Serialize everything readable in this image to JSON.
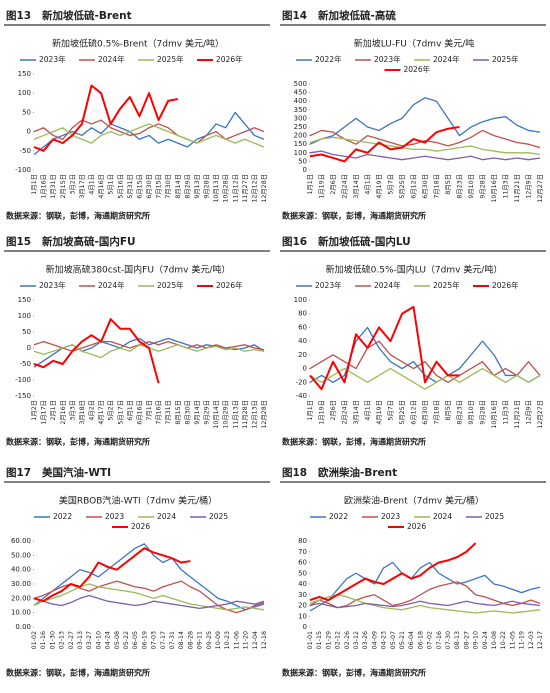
{
  "chart_data": [
    {
      "type": "line",
      "figure": "图13",
      "caption": "新加坡低硫-Brent",
      "title": "新加坡低硫0.5%-Brent（7dmv 美元/吨）",
      "source": "数据来源：钢联，彭博，海通期货研究所",
      "categories": [
        "1月1日",
        "1月16日",
        "1月31日",
        "2月15日",
        "3月2日",
        "3月17日",
        "4月1日",
        "4月16日",
        "5月1日",
        "5月16日",
        "5月31日",
        "6月15日",
        "6月30日",
        "7月15日",
        "7月30日",
        "8月14日",
        "8月29日",
        "9月13日",
        "9月28日",
        "10月13日",
        "10月28日",
        "11月12日",
        "11月27日",
        "12月12日",
        "12月28日"
      ],
      "ylim": [
        -100,
        150
      ],
      "yticks": [
        -100,
        -50,
        0,
        50,
        100,
        150
      ],
      "series": [
        {
          "name": "2023年",
          "color": "#3a75c4",
          "values": [
            -60,
            -40,
            -20,
            -10,
            0,
            -10,
            10,
            -5,
            20,
            10,
            0,
            -20,
            -10,
            -30,
            -20,
            -30,
            -40,
            -20,
            -10,
            20,
            10,
            50,
            20,
            -10,
            -20
          ]
        },
        {
          "name": "2024年",
          "color": "#c0504d",
          "values": [
            0,
            10,
            -10,
            -20,
            10,
            30,
            20,
            30,
            10,
            0,
            -10,
            -5,
            10,
            20,
            10,
            -10,
            -20,
            -30,
            -10,
            0,
            -20,
            -10,
            0,
            10,
            0
          ]
        },
        {
          "name": "2025年",
          "color": "#9bbb59",
          "values": [
            -20,
            -10,
            0,
            10,
            -10,
            -20,
            -30,
            -10,
            0,
            -10,
            0,
            10,
            20,
            10,
            0,
            -10,
            -20,
            -30,
            -20,
            -10,
            -20,
            -30,
            -20,
            -30,
            -40
          ]
        },
        {
          "name": "2026年",
          "color": "#ff0000",
          "values": [
            -40,
            -50,
            -20,
            -30,
            -10,
            20,
            120,
            100,
            20,
            60,
            90,
            40,
            100,
            30,
            80,
            85,
            null,
            null,
            null,
            null,
            null,
            null,
            null,
            null,
            null
          ]
        }
      ]
    },
    {
      "type": "line",
      "figure": "图14",
      "caption": "新加坡低硫-高硫",
      "title": "新加坡LU-FU（7dmv 美元/吨",
      "source": "数据来源：钢联，彭博，海通期货研究所",
      "categories": [
        "1月1日",
        "1月19日",
        "2月6日",
        "2月24日",
        "3月14日",
        "4月1日",
        "4月19日",
        "5月7日",
        "5月25日",
        "6月12日",
        "6月30日",
        "7月18日",
        "8月5日",
        "8月23日",
        "9月10日",
        "9月28日",
        "10月16日",
        "11月3日",
        "11月21日",
        "12月9日",
        "12月27日"
      ],
      "ylim": [
        0,
        500
      ],
      "yticks": [
        0,
        50,
        100,
        150,
        200,
        250,
        300,
        350,
        400,
        450,
        500
      ],
      "series": [
        {
          "name": "2022年",
          "color": "#3a75c4",
          "values": [
            150,
            180,
            200,
            250,
            300,
            250,
            230,
            270,
            300,
            380,
            420,
            400,
            300,
            200,
            250,
            280,
            300,
            310,
            260,
            230,
            220
          ]
        },
        {
          "name": "2023年",
          "color": "#c0504d",
          "values": [
            200,
            230,
            220,
            180,
            150,
            200,
            180,
            160,
            140,
            150,
            170,
            160,
            140,
            160,
            190,
            230,
            200,
            180,
            160,
            150,
            130
          ]
        },
        {
          "name": "2024年",
          "color": "#9bbb59",
          "values": [
            160,
            180,
            190,
            180,
            170,
            160,
            150,
            140,
            130,
            120,
            120,
            110,
            120,
            130,
            140,
            120,
            110,
            100,
            100,
            100,
            90
          ]
        },
        {
          "name": "2025年",
          "color": "#7f5fa8",
          "values": [
            100,
            110,
            90,
            80,
            70,
            90,
            80,
            70,
            60,
            70,
            80,
            70,
            60,
            70,
            80,
            60,
            70,
            60,
            70,
            60,
            70
          ]
        },
        {
          "name": "2026年",
          "color": "#ff0000",
          "values": [
            80,
            90,
            70,
            50,
            120,
            100,
            160,
            120,
            130,
            180,
            160,
            220,
            240,
            250,
            null,
            null,
            null,
            null,
            null,
            null,
            null
          ]
        }
      ]
    },
    {
      "type": "line",
      "figure": "图15",
      "caption": "新加坡高硫-国内FU",
      "title": "新加坡高硫380cst-国内FU（7dmv 美元/吨）",
      "source": "数据来源：钢联，彭博，海通期货研究所",
      "categories": [
        "1月2日",
        "1月17日",
        "2月1日",
        "2月16日",
        "3月3日",
        "3月18日",
        "4月2日",
        "4月17日",
        "5月2日",
        "5月17日",
        "6月1日",
        "6月16日",
        "7月1日",
        "7月16日",
        "7月31日",
        "8月15日",
        "8月30日",
        "9月14日",
        "9月29日",
        "10月14日",
        "10月29日",
        "11月13日",
        "11月28日",
        "12月13日",
        "12月28日"
      ],
      "ylim": [
        -150,
        150
      ],
      "yticks": [
        -150,
        -100,
        -50,
        0,
        50,
        100,
        150
      ],
      "series": [
        {
          "name": "2023年",
          "color": "#3a75c4",
          "values": [
            -60,
            -40,
            -20,
            0,
            10,
            -10,
            0,
            20,
            10,
            0,
            20,
            30,
            10,
            20,
            30,
            20,
            10,
            0,
            10,
            5,
            0,
            -5,
            0,
            10,
            -10
          ]
        },
        {
          "name": "2024年",
          "color": "#c0504d",
          "values": [
            10,
            20,
            10,
            0,
            -10,
            0,
            10,
            20,
            20,
            10,
            0,
            10,
            20,
            10,
            20,
            10,
            0,
            10,
            0,
            10,
            0,
            5,
            10,
            0,
            -5
          ]
        },
        {
          "name": "2025年",
          "color": "#9bbb59",
          "values": [
            -10,
            -20,
            -10,
            0,
            10,
            -10,
            -20,
            -30,
            -10,
            0,
            -10,
            10,
            0,
            -10,
            0,
            10,
            0,
            -10,
            0,
            5,
            -5,
            0,
            -10,
            -5,
            -10
          ]
        },
        {
          "name": "2026年",
          "color": "#ff0000",
          "values": [
            -50,
            -60,
            -40,
            -50,
            -10,
            20,
            40,
            20,
            90,
            60,
            60,
            20,
            0,
            -110,
            null,
            null,
            null,
            null,
            null,
            null,
            null,
            null,
            null,
            null,
            null
          ]
        }
      ]
    },
    {
      "type": "line",
      "figure": "图16",
      "caption": "新加坡低硫-国内LU",
      "title": "新加坡低硫0.5%-国内LU（7dmv 美元/吨）",
      "source": "数据来源：钢联，彭博，海通期货研究所",
      "categories": [
        "1月1日",
        "1月19日",
        "2月6日",
        "2月24日",
        "3月14日",
        "4月1日",
        "4月19日",
        "5月7日",
        "5月25日",
        "6月12日",
        "6月30日",
        "7月18日",
        "8月5日",
        "8月23日",
        "9月10日",
        "9月28日",
        "10月16日",
        "11月3日",
        "11月21日",
        "12月9日",
        "12月27日"
      ],
      "ylim": [
        -40,
        100
      ],
      "yticks": [
        -40,
        -20,
        0,
        20,
        40,
        60,
        80,
        100
      ],
      "series": [
        {
          "name": "2023年",
          "color": "#3a75c4",
          "values": [
            -20,
            -10,
            -20,
            -10,
            40,
            60,
            30,
            10,
            0,
            10,
            -10,
            -20,
            -10,
            0,
            20,
            40,
            20,
            -10,
            -10,
            -20,
            -10
          ]
        },
        {
          "name": "2024年",
          "color": "#c0504d",
          "values": [
            0,
            10,
            20,
            10,
            0,
            30,
            40,
            20,
            10,
            0,
            10,
            -10,
            -20,
            -10,
            0,
            10,
            -10,
            0,
            -10,
            10,
            -10
          ]
        },
        {
          "name": "2025年",
          "color": "#9bbb59",
          "values": [
            -10,
            -20,
            -10,
            0,
            -10,
            -20,
            -10,
            0,
            -10,
            -20,
            -30,
            -20,
            -10,
            -20,
            -10,
            0,
            -10,
            -20,
            -10,
            -20,
            -10
          ]
        },
        {
          "name": "2026年",
          "color": "#ff0000",
          "values": [
            -10,
            -30,
            10,
            -20,
            50,
            30,
            60,
            40,
            80,
            90,
            -20,
            10,
            -10,
            -10,
            null,
            null,
            null,
            null,
            null,
            null,
            null
          ]
        }
      ]
    },
    {
      "type": "line",
      "figure": "图17",
      "caption": "美国汽油-WTI",
      "title": "美国RBOB汽油-WTI（7dmv 美元/桶）",
      "source": "数据来源：钢联，彭博，海通期货研究所",
      "categories": [
        "01-02",
        "01-16",
        "01-30",
        "02-13",
        "02-27",
        "03-13",
        "03-27",
        "04-10",
        "04-24",
        "05-08",
        "05-22",
        "06-05",
        "06-19",
        "07-03",
        "07-17",
        "07-31",
        "08-14",
        "08-28",
        "09-11",
        "09-25",
        "10-09",
        "10-23",
        "11-06",
        "11-20",
        "12-04",
        "12-18"
      ],
      "ylim": [
        0,
        60
      ],
      "yticks": [
        {
          "value": 0,
          "label": "0.00"
        },
        {
          "value": 10,
          "label": "10.00"
        },
        {
          "value": 20,
          "label": "20.00"
        },
        {
          "value": 30,
          "label": "30.00"
        },
        {
          "value": 40,
          "label": "40.00"
        },
        {
          "value": 50,
          "label": "50.00"
        },
        {
          "value": 60,
          "label": "60.00"
        }
      ],
      "series": [
        {
          "name": "2022",
          "color": "#3a75c4",
          "values": [
            15,
            20,
            25,
            30,
            35,
            40,
            38,
            35,
            40,
            45,
            50,
            55,
            58,
            50,
            45,
            48,
            40,
            35,
            30,
            25,
            20,
            18,
            15,
            12,
            14,
            16
          ]
        },
        {
          "name": "2023",
          "color": "#c0504d",
          "values": [
            20,
            22,
            25,
            28,
            30,
            27,
            25,
            28,
            30,
            32,
            30,
            28,
            27,
            25,
            28,
            30,
            32,
            28,
            25,
            20,
            15,
            12,
            10,
            12,
            15,
            17
          ]
        },
        {
          "name": "2024",
          "color": "#9bbb59",
          "values": [
            15,
            18,
            20,
            22,
            25,
            28,
            30,
            28,
            27,
            26,
            25,
            24,
            22,
            20,
            22,
            20,
            18,
            16,
            15,
            14,
            13,
            12,
            13,
            14,
            13,
            12
          ]
        },
        {
          "name": "2025",
          "color": "#7f5fa8",
          "values": [
            20,
            18,
            16,
            15,
            17,
            20,
            22,
            20,
            18,
            17,
            16,
            15,
            16,
            18,
            17,
            16,
            15,
            14,
            13,
            14,
            15,
            16,
            18,
            17,
            16,
            18
          ]
        },
        {
          "name": "2026",
          "color": "#ff0000",
          "values": [
            20,
            18,
            22,
            25,
            30,
            28,
            35,
            45,
            42,
            40,
            45,
            50,
            55,
            52,
            50,
            48,
            45,
            46,
            null,
            null,
            null,
            null,
            null,
            null,
            null,
            null
          ]
        }
      ]
    },
    {
      "type": "line",
      "figure": "图18",
      "caption": "欧洲柴油-Brent",
      "title": "欧洲柴油-Brent（7dmv 美元/桶）",
      "source": "数据来源：钢联，彭博，海通期货研究所",
      "categories": [
        "01-01",
        "01-15",
        "01-29",
        "02-12",
        "02-26",
        "03-12",
        "03-26",
        "04-09",
        "04-23",
        "05-07",
        "05-21",
        "06-04",
        "06-18",
        "07-02",
        "07-16",
        "07-30",
        "08-13",
        "08-27",
        "09-10",
        "09-24",
        "10-08",
        "10-22",
        "11-05",
        "11-19",
        "12-03",
        "12-17"
      ],
      "ylim": [
        0,
        80
      ],
      "yticks": [
        0,
        10,
        20,
        30,
        40,
        50,
        60,
        70,
        80
      ],
      "series": [
        {
          "name": "2022",
          "color": "#3a75c4",
          "values": [
            15,
            20,
            25,
            35,
            45,
            50,
            45,
            40,
            55,
            60,
            50,
            45,
            55,
            60,
            50,
            45,
            40,
            42,
            45,
            48,
            40,
            38,
            35,
            32,
            35,
            37
          ]
        },
        {
          "name": "2023",
          "color": "#c0504d",
          "values": [
            20,
            25,
            22,
            18,
            20,
            25,
            28,
            30,
            25,
            20,
            22,
            25,
            30,
            35,
            38,
            40,
            42,
            38,
            30,
            28,
            25,
            22,
            20,
            22,
            25,
            22
          ]
        },
        {
          "name": "2024",
          "color": "#9bbb59",
          "values": [
            22,
            25,
            28,
            30,
            28,
            25,
            22,
            20,
            18,
            17,
            16,
            18,
            20,
            18,
            17,
            16,
            15,
            14,
            13,
            14,
            15,
            14,
            13,
            14,
            15,
            16
          ]
        },
        {
          "name": "2025",
          "color": "#7f5fa8",
          "values": [
            20,
            22,
            20,
            18,
            19,
            20,
            22,
            21,
            20,
            19,
            20,
            22,
            24,
            22,
            21,
            20,
            22,
            24,
            22,
            21,
            20,
            22,
            24,
            22,
            21,
            20
          ]
        },
        {
          "name": "2026",
          "color": "#ff0000",
          "values": [
            25,
            28,
            25,
            30,
            35,
            40,
            45,
            42,
            40,
            45,
            50,
            45,
            48,
            55,
            60,
            62,
            65,
            70,
            78,
            null,
            null,
            null,
            null,
            null,
            null,
            null
          ]
        }
      ]
    }
  ]
}
